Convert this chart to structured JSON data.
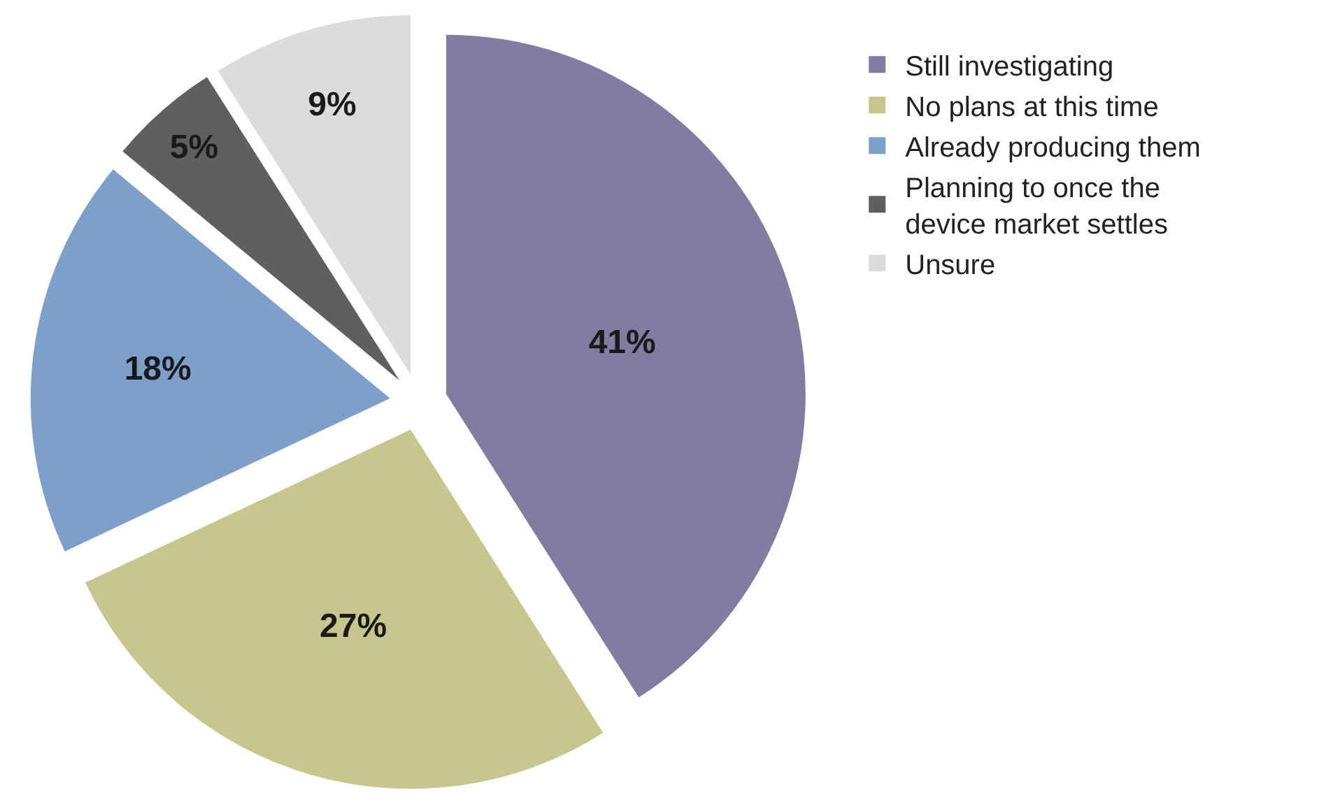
{
  "chart_data": {
    "type": "pie",
    "categories": [
      "Still investigating",
      "No plans at this time",
      "Already producing them",
      "Planning to once the device market settles",
      "Unsure"
    ],
    "values": [
      41,
      27,
      18,
      5,
      9
    ],
    "value_labels": [
      "41%",
      "27%",
      "18%",
      "5%",
      "9%"
    ],
    "colors": [
      "#837ba0",
      "#c7c68e",
      "#7f9fcb",
      "#5f5f5f",
      "#dcdcdc"
    ],
    "legend": "top right"
  }
}
